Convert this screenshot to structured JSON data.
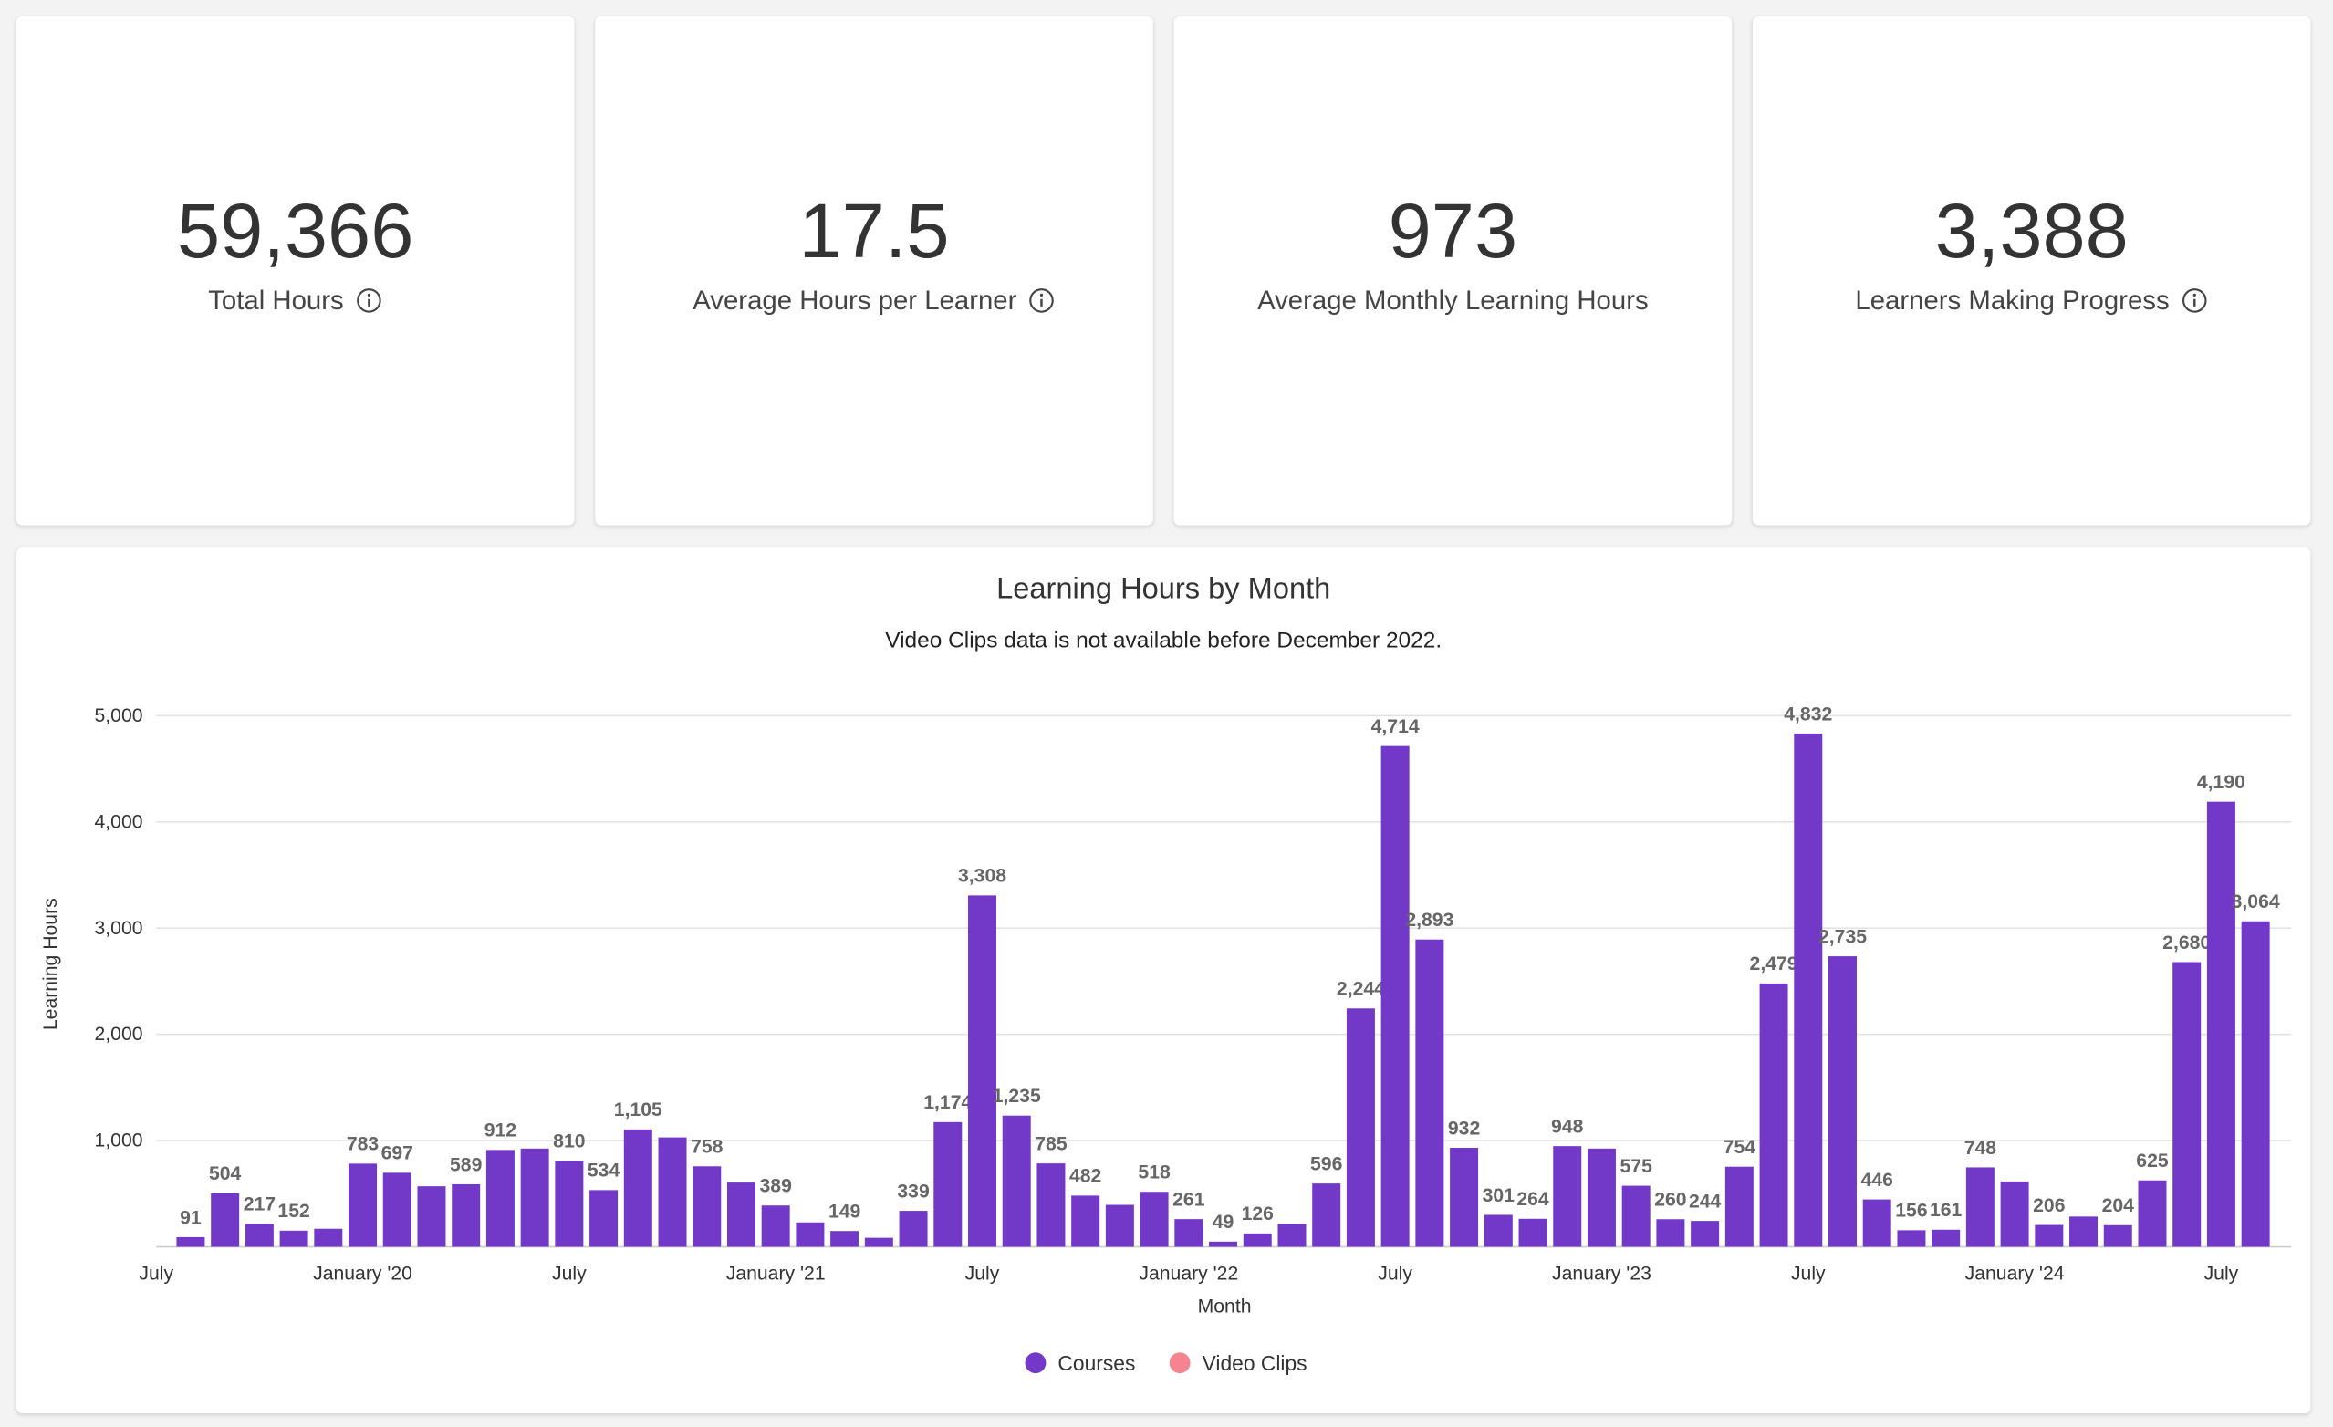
{
  "cards": [
    {
      "value": "59,366",
      "label": "Total Hours",
      "info_icon": true
    },
    {
      "value": "17.5",
      "label": "Average Hours per Learner",
      "info_icon": true
    },
    {
      "value": "973",
      "label": "Average Monthly Learning Hours",
      "info_icon": false
    },
    {
      "value": "3,388",
      "label": "Learners Making Progress",
      "info_icon": true
    }
  ],
  "chart_data": {
    "type": "bar",
    "title": "Learning Hours by Month",
    "subtitle": "Video Clips data is not available before December 2022.",
    "x_label": "Month",
    "y_label": "Learning Hours",
    "categories": [
      "July",
      null,
      null,
      null,
      null,
      null,
      "January '20",
      null,
      null,
      null,
      null,
      null,
      "July",
      null,
      null,
      null,
      null,
      null,
      "January '21",
      null,
      null,
      null,
      null,
      null,
      "July",
      null,
      null,
      null,
      null,
      null,
      "January '22",
      null,
      null,
      null,
      null,
      null,
      "July",
      null,
      null,
      null,
      null,
      null,
      "January '23",
      null,
      null,
      null,
      null,
      null,
      "July",
      null,
      null,
      null,
      null,
      null,
      "January '24",
      null,
      null,
      null,
      null,
      null,
      "July",
      null
    ],
    "series": [
      {
        "name": "Courses",
        "color": "#7239c8",
        "values": [
          null,
          91,
          504,
          217,
          152,
          170,
          783,
          697,
          570,
          589,
          912,
          925,
          810,
          534,
          1105,
          1030,
          758,
          605,
          389,
          230,
          149,
          85,
          339,
          1174,
          3308,
          1235,
          785,
          482,
          395,
          518,
          261,
          49,
          126,
          215,
          596,
          2244,
          4714,
          2893,
          932,
          301,
          264,
          948,
          925,
          575,
          260,
          244,
          754,
          2479,
          4832,
          2735,
          446,
          156,
          161,
          748,
          615,
          206,
          285,
          204,
          625,
          2680,
          4190,
          3064
        ],
        "value_labels": [
          null,
          "91",
          "504",
          "217",
          "152",
          null,
          "783",
          "697",
          null,
          "589",
          "912",
          null,
          "810",
          "534",
          "1,105",
          null,
          "758",
          null,
          "389",
          null,
          "149",
          null,
          "339",
          "1,174",
          "3,308",
          "1,235",
          "785",
          "482",
          null,
          "518",
          "261",
          "49",
          "126",
          null,
          "596",
          "2,244",
          "4,714",
          "2,893",
          "932",
          "301",
          "264",
          "948",
          null,
          "575",
          "260",
          "244",
          "754",
          "2,479",
          "4,832",
          "2,735",
          "446",
          "156",
          "161",
          "748",
          null,
          "206",
          null,
          "204",
          "625",
          "2,680",
          "4,190",
          "3,064"
        ]
      },
      {
        "name": "Video Clips",
        "color": "#f4848f"
      }
    ],
    "ylim": [
      0,
      5000
    ],
    "yticks": [
      {
        "value": 1000,
        "label": "1,000"
      },
      {
        "value": 2000,
        "label": "2,000"
      },
      {
        "value": 3000,
        "label": "3,000"
      },
      {
        "value": 4000,
        "label": "4,000"
      },
      {
        "value": 5000,
        "label": "5,000"
      }
    ],
    "grid": true,
    "legend": "bottom"
  }
}
